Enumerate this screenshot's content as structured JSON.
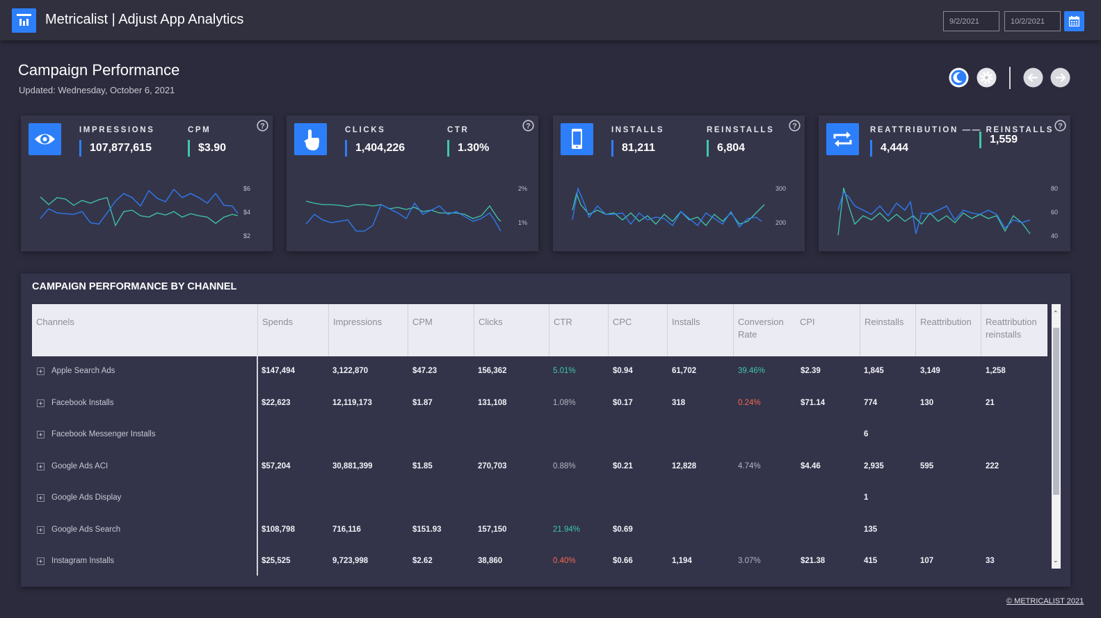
{
  "header": {
    "title": "Metricalist | Adjust App Analytics",
    "start_date": "9/2/2021",
    "end_date": "10/2/2021",
    "logo_icon": "bar-chart-icon",
    "calendar_icon": "calendar-icon",
    "accent": "#2d7ff9"
  },
  "page": {
    "title": "Campaign Performance",
    "updated": "Updated: Wednesday, October 6, 2021",
    "buttons": [
      "dark-mode-icon",
      "settings-icon",
      "arrow-left-icon",
      "arrow-right-icon"
    ]
  },
  "kpis": [
    {
      "icon": "eye-icon",
      "m1_label": "IMPRESSIONS",
      "m1_value": "107,877,615",
      "m2_label": "CPM",
      "m2_value": "$3.90",
      "axis": [
        "$6",
        "$4",
        "$2"
      ]
    },
    {
      "icon": "pointer-hand-icon",
      "m1_label": "CLICKS",
      "m1_value": "1,404,226",
      "m2_label": "CTR",
      "m2_value": "1.30%",
      "axis": [
        "2%",
        "1%"
      ]
    },
    {
      "icon": "mobile-phone-icon",
      "m1_label": "INSTALLS",
      "m1_value": "81,211",
      "m2_label": "REINSTALLS",
      "m2_value": "6,804",
      "axis": [
        "300",
        "200"
      ]
    },
    {
      "icon": "repeat-icon",
      "m1_label": "REATTRIBUTION —— REINSTALLS",
      "m1_value": "4,444",
      "m2_label": "",
      "m2_value": "1,559",
      "axis": [
        "80",
        "60",
        "40"
      ]
    }
  ],
  "sparklines": {
    "colors": {
      "blue": "#2d7ff9",
      "teal": "#3ec9a7"
    }
  },
  "table": {
    "title": "CAMPAIGN PERFORMANCE BY CHANNEL",
    "columns": [
      "Channels",
      "Spends",
      "Impressions",
      "CPM",
      "Clicks",
      "CTR",
      "CPC",
      "Installs",
      "Conversion Rate",
      "CPI",
      "Reinstalls",
      "Reattribution",
      "Reattribution reinstalls"
    ],
    "rows": [
      {
        "channel": "Apple Search Ads",
        "cells": [
          "$147,494",
          "3,122,870",
          "$47.23",
          "156,362",
          "5.01%",
          "$0.94",
          "61,702",
          "39.46%",
          "$2.39",
          "1,845",
          "3,149",
          "1,258"
        ]
      },
      {
        "channel": "Facebook Installs",
        "cells": [
          "$22,623",
          "12,119,173",
          "$1.87",
          "131,108",
          "1.08%",
          "$0.17",
          "318",
          "0.24%",
          "$71.14",
          "774",
          "130",
          "21"
        ]
      },
      {
        "channel": "Facebook Messenger Installs",
        "cells": [
          "",
          "",
          "",
          "",
          "",
          "",
          "",
          "",
          "",
          "6",
          "",
          ""
        ]
      },
      {
        "channel": "Google Ads ACI",
        "cells": [
          "$57,204",
          "30,881,399",
          "$1.85",
          "270,703",
          "0.88%",
          "$0.21",
          "12,828",
          "4.74%",
          "$4.46",
          "2,935",
          "595",
          "222"
        ]
      },
      {
        "channel": "Google Ads Display",
        "cells": [
          "",
          "",
          "",
          "",
          "",
          "",
          "",
          "",
          "",
          "1",
          "",
          ""
        ]
      },
      {
        "channel": "Google Ads Search",
        "cells": [
          "$108,798",
          "716,116",
          "$151.93",
          "157,150",
          "21.94%",
          "$0.69",
          "",
          "",
          "",
          "135",
          "",
          ""
        ]
      },
      {
        "channel": "Instagram Installs",
        "cells": [
          "$25,525",
          "9,723,998",
          "$2.62",
          "38,860",
          "0.40%",
          "$0.66",
          "1,194",
          "3.07%",
          "$21.38",
          "415",
          "107",
          "33"
        ]
      }
    ]
  },
  "footer": "© METRICALIST 2021"
}
